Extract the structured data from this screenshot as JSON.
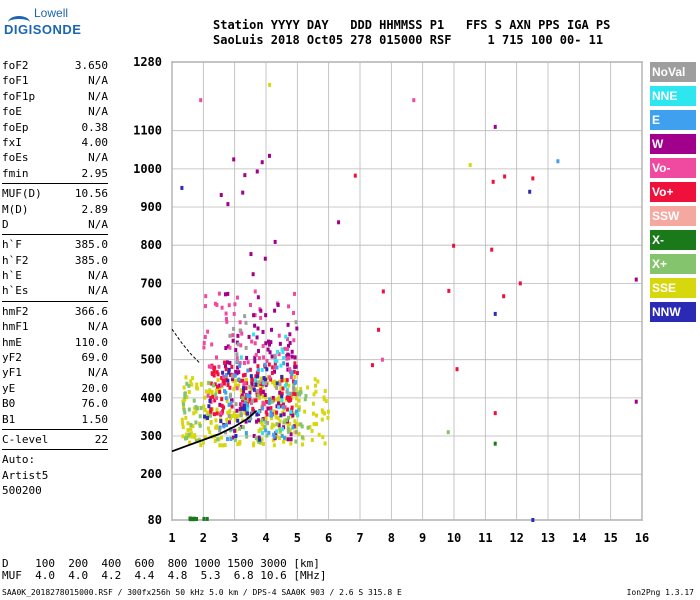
{
  "logo": {
    "line1": "Lowell",
    "line2": "DIGISONDE"
  },
  "header": {
    "line1": "Station YYYY DAY   DDD HHMMSS P1   FFS S AXN PPS IGA PS",
    "line2": "SaoLuis 2018 Oct05 278 015000 RSF     1 715 100 00- 11"
  },
  "params": {
    "group1": [
      {
        "k": "foF2",
        "v": "3.650"
      },
      {
        "k": "foF1",
        "v": "N/A"
      },
      {
        "k": "foF1p",
        "v": "N/A"
      },
      {
        "k": "foE",
        "v": "N/A"
      },
      {
        "k": "foEp",
        "v": "0.38"
      },
      {
        "k": "fxI",
        "v": "4.00"
      },
      {
        "k": "foEs",
        "v": "N/A"
      },
      {
        "k": "fmin",
        "v": "2.95"
      }
    ],
    "group2": [
      {
        "k": "MUF(D)",
        "v": "10.56"
      },
      {
        "k": "M(D)",
        "v": "2.89"
      },
      {
        "k": "D",
        "v": "N/A"
      }
    ],
    "group3": [
      {
        "k": "h`F",
        "v": "385.0"
      },
      {
        "k": "h`F2",
        "v": "385.0"
      },
      {
        "k": "h`E",
        "v": "N/A"
      },
      {
        "k": "h`Es",
        "v": "N/A"
      }
    ],
    "group4": [
      {
        "k": "hmF2",
        "v": "366.6"
      },
      {
        "k": "hmF1",
        "v": "N/A"
      },
      {
        "k": "hmE",
        "v": "110.0"
      },
      {
        "k": "yF2",
        "v": "69.0"
      },
      {
        "k": "yF1",
        "v": "N/A"
      },
      {
        "k": "yE",
        "v": "20.0"
      },
      {
        "k": "B0",
        "v": "76.0"
      },
      {
        "k": "B1",
        "v": "1.50"
      }
    ],
    "clevel": {
      "k": "C-level",
      "v": "22"
    },
    "auto": [
      "Auto:",
      "Artist5",
      "500200"
    ]
  },
  "legend": [
    {
      "label": "NoVal",
      "color": "#9e9e9e"
    },
    {
      "label": "NNE",
      "color": "#2ee6f0"
    },
    {
      "label": "E",
      "color": "#3fa0f0"
    },
    {
      "label": "W",
      "color": "#a0008c"
    },
    {
      "label": "Vo-",
      "color": "#f04aa0"
    },
    {
      "label": "Vo+",
      "color": "#f0103c"
    },
    {
      "label": "SSW",
      "color": "#f5a8a0"
    },
    {
      "label": "X-",
      "color": "#1a7a1a"
    },
    {
      "label": "X+",
      "color": "#84c46c"
    },
    {
      "label": "SSE",
      "color": "#d7d70e"
    },
    {
      "label": "NNW",
      "color": "#2a2ab4"
    }
  ],
  "bottom": {
    "line1": "D    100  200  400  600  800 1000 1500 3000 [km]",
    "line2": "MUF  4.0  4.0  4.2  4.4  4.8  5.3  6.8 10.6 [MHz]"
  },
  "footer": {
    "left": "SAA0K_2018278015000.RSF / 300fx256h 50 kHz 5.0 km / DPS-4 SAA0K 903 / 2.6 S 315.8 E",
    "right": "Ion2Png 1.3.17"
  },
  "chart_data": {
    "type": "scatter",
    "title": "",
    "xlabel": "",
    "ylabel": "",
    "xlim": [
      1,
      16
    ],
    "ylim": [
      80,
      1280
    ],
    "x_ticks": [
      1,
      2,
      3,
      4,
      5,
      6,
      7,
      8,
      9,
      10,
      11,
      12,
      13,
      14,
      15,
      16
    ],
    "y_ticks": [
      80,
      200,
      300,
      400,
      500,
      600,
      700,
      800,
      900,
      1000,
      1100,
      1280
    ],
    "grid": true,
    "profile": {
      "name": "",
      "points": [
        [
          1.0,
          260
        ],
        [
          1.5,
          275
        ],
        [
          2.0,
          290
        ],
        [
          2.5,
          305
        ],
        [
          3.0,
          325
        ],
        [
          3.4,
          345
        ],
        [
          3.7,
          366.6
        ]
      ]
    },
    "trace_ext": {
      "points": [
        [
          1.0,
          580
        ],
        [
          1.3,
          545
        ],
        [
          1.6,
          515
        ],
        [
          1.9,
          490
        ]
      ]
    },
    "clusters": [
      {
        "color": "#d7d70e",
        "n": 260,
        "x": [
          1.3,
          6.0
        ],
        "y": [
          270,
          460
        ]
      },
      {
        "color": "#a0008c",
        "n": 110,
        "x": [
          2.5,
          5.0
        ],
        "y": [
          280,
          600
        ]
      },
      {
        "color": "#f0103c",
        "n": 110,
        "x": [
          2.2,
          5.0
        ],
        "y": [
          350,
          500
        ]
      },
      {
        "color": "#f04aa0",
        "n": 80,
        "x": [
          2.0,
          5.0
        ],
        "y": [
          350,
          700
        ]
      },
      {
        "color": "#84c46c",
        "n": 70,
        "x": [
          1.3,
          5.5
        ],
        "y": [
          280,
          450
        ]
      },
      {
        "color": "#3fa0f0",
        "n": 50,
        "x": [
          2.5,
          5.0
        ],
        "y": [
          280,
          500
        ]
      },
      {
        "color": "#2ee6f0",
        "n": 25,
        "x": [
          3.0,
          5.0
        ],
        "y": [
          300,
          600
        ]
      },
      {
        "color": "#2a2ab4",
        "n": 30,
        "x": [
          2.0,
          4.5
        ],
        "y": [
          280,
          500
        ]
      },
      {
        "color": "#9e9e9e",
        "n": 30,
        "x": [
          2.5,
          5.0
        ],
        "y": [
          300,
          650
        ]
      },
      {
        "color": "#1a7a1a",
        "n": 12,
        "x": [
          1.5,
          2.2
        ],
        "y": [
          82,
          84
        ]
      },
      {
        "color": "#a0008c",
        "n": 20,
        "x": [
          2.5,
          4.5
        ],
        "y": [
          600,
          1050
        ]
      },
      {
        "color": "#f0103c",
        "n": 10,
        "x": [
          6.0,
          12.5
        ],
        "y": [
          400,
          1000
        ]
      }
    ],
    "outliers": [
      {
        "x": 11.3,
        "y": 1110,
        "color": "#a0008c"
      },
      {
        "x": 11.6,
        "y": 980,
        "color": "#f0103c"
      },
      {
        "x": 12.1,
        "y": 700,
        "color": "#f0103c"
      },
      {
        "x": 12.5,
        "y": 975,
        "color": "#f0103c"
      },
      {
        "x": 13.3,
        "y": 1020,
        "color": "#3fa0f0"
      },
      {
        "x": 11.3,
        "y": 620,
        "color": "#2a2ab4"
      },
      {
        "x": 11.3,
        "y": 360,
        "color": "#f0103c"
      },
      {
        "x": 11.3,
        "y": 280,
        "color": "#1a7a1a"
      },
      {
        "x": 12.4,
        "y": 940,
        "color": "#2a2ab4"
      },
      {
        "x": 6.3,
        "y": 860,
        "color": "#a0008c"
      },
      {
        "x": 10.5,
        "y": 1010,
        "color": "#d7d70e"
      },
      {
        "x": 15.8,
        "y": 710,
        "color": "#a0008c"
      },
      {
        "x": 15.8,
        "y": 390,
        "color": "#a0008c"
      },
      {
        "x": 1.3,
        "y": 950,
        "color": "#2a2ab4"
      },
      {
        "x": 4.1,
        "y": 1220,
        "color": "#d7d70e"
      },
      {
        "x": 1.9,
        "y": 1180,
        "color": "#f04aa0"
      },
      {
        "x": 8.7,
        "y": 1180,
        "color": "#f04aa0"
      },
      {
        "x": 9.8,
        "y": 310,
        "color": "#84c46c"
      },
      {
        "x": 12.5,
        "y": 80,
        "color": "#2a2ab4"
      },
      {
        "x": 7.7,
        "y": 500,
        "color": "#f04aa0"
      }
    ]
  }
}
